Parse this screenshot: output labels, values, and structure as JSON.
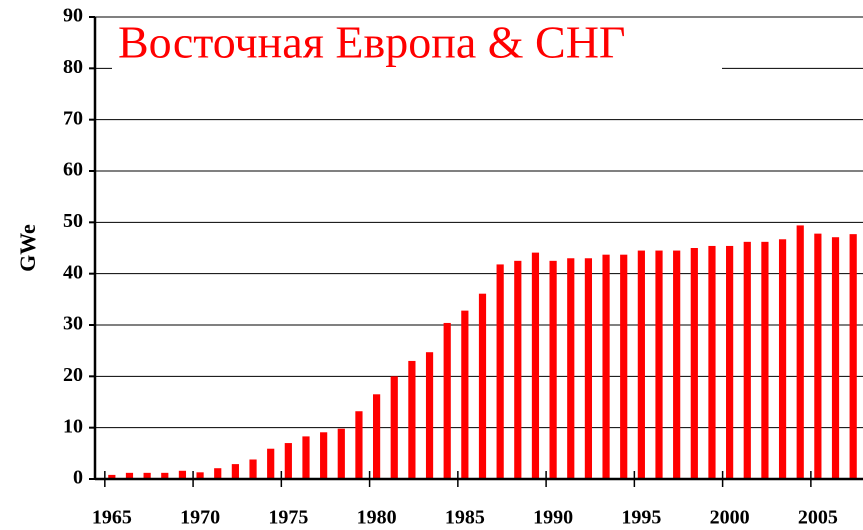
{
  "chart_data": {
    "type": "bar",
    "title": "Восточная Европа & СНГ",
    "y_label": "GWe",
    "categories": [
      "1965",
      null,
      null,
      null,
      null,
      "1970",
      null,
      null,
      null,
      null,
      "1975",
      null,
      null,
      null,
      null,
      "1980",
      null,
      null,
      null,
      null,
      "1985",
      null,
      null,
      null,
      null,
      "1990",
      null,
      null,
      null,
      null,
      "1995",
      null,
      null,
      null,
      null,
      "2000",
      null,
      null,
      null,
      null,
      "2005",
      null,
      null
    ],
    "values": [
      0.8,
      1.2,
      1.2,
      1.2,
      1.6,
      1.3,
      2.1,
      2.9,
      3.8,
      5.9,
      7.0,
      8.3,
      9.1,
      9.8,
      13.2,
      16.5,
      20.0,
      23.0,
      24.7,
      30.4,
      32.8,
      36.1,
      41.8,
      42.5,
      44.1,
      42.5,
      43.0,
      43.0,
      43.7,
      43.7,
      44.5,
      44.5,
      44.5,
      45.0,
      45.4,
      45.4,
      46.2,
      46.2,
      46.7,
      49.4,
      47.8,
      47.1,
      47.7
    ],
    "color": "#ff0000",
    "ylim": [
      0,
      90
    ],
    "yticks": [
      0,
      10,
      20,
      30,
      40,
      50,
      60,
      70,
      80,
      90
    ],
    "grid": true
  }
}
